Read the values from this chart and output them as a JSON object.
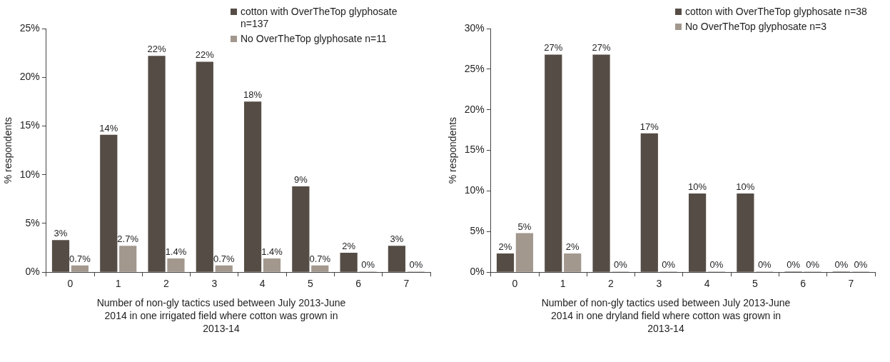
{
  "chart_data": [
    {
      "type": "bar",
      "ylabel": "% respondents",
      "xlabel": "Number of non-gly tactics used between July 2013-June 2014 in one irrigated field where cotton was grown in 2013-14",
      "categories": [
        "0",
        "1",
        "2",
        "3",
        "4",
        "5",
        "6",
        "7"
      ],
      "series": [
        {
          "name": "cotton with OverTheTop glyphosate n=137",
          "color": "#554d45",
          "values": [
            3.3,
            14.1,
            22.2,
            21.6,
            17.5,
            8.8,
            2.0,
            2.7
          ],
          "value_labels": [
            "3%",
            "14%",
            "22%",
            "22%",
            "18%",
            "9%",
            "2%",
            "3%"
          ]
        },
        {
          "name": "No OverTheTop glyphosate n=11",
          "color": "#a2988e",
          "values": [
            0.7,
            2.7,
            1.4,
            0.7,
            1.4,
            0.7,
            0,
            0
          ],
          "value_labels": [
            "0.7%",
            "2.7%",
            "1.4%",
            "0.7%",
            "1.4%",
            "0.7%",
            "0%",
            "0%"
          ]
        }
      ],
      "ylim": [
        0,
        25
      ],
      "yticks": [
        {
          "value": 0,
          "label": "0%"
        },
        {
          "value": 5,
          "label": "5%"
        },
        {
          "value": 10,
          "label": "10%"
        },
        {
          "value": 15,
          "label": "15%"
        },
        {
          "value": 20,
          "label": "20%"
        },
        {
          "value": 25,
          "label": "25%"
        }
      ],
      "grid": false,
      "legend": "top right"
    },
    {
      "type": "bar",
      "ylabel": "% respondents",
      "xlabel": "Number of non-gly tactics used between July 2013-June 2014 in one dryland field where cotton was grown in 2013-14",
      "categories": [
        "0",
        "1",
        "2",
        "3",
        "4",
        "5",
        "6",
        "7"
      ],
      "series": [
        {
          "name": "cotton with OverTheTop glyphosate n=38",
          "color": "#554d45",
          "values": [
            2.3,
            26.8,
            26.8,
            17.1,
            9.7,
            9.7,
            0,
            0
          ],
          "value_labels": [
            "2%",
            "27%",
            "27%",
            "17%",
            "10%",
            "10%",
            "0%",
            "0%"
          ]
        },
        {
          "name": "No OverTheTop glyphosate n=3",
          "color": "#a2988e",
          "values": [
            4.8,
            2.3,
            0,
            0,
            0,
            0,
            0,
            0
          ],
          "value_labels": [
            "5%",
            "2%",
            "0%",
            "0%",
            "0%",
            "0%",
            "0%",
            "0%"
          ]
        }
      ],
      "ylim": [
        0,
        30
      ],
      "yticks": [
        {
          "value": 0,
          "label": "0%"
        },
        {
          "value": 5,
          "label": "5%"
        },
        {
          "value": 10,
          "label": "10%"
        },
        {
          "value": 15,
          "label": "15%"
        },
        {
          "value": 20,
          "label": "20%"
        },
        {
          "value": 25,
          "label": "25%"
        },
        {
          "value": 30,
          "label": "30%"
        }
      ],
      "grid": false,
      "legend": "top right"
    }
  ]
}
